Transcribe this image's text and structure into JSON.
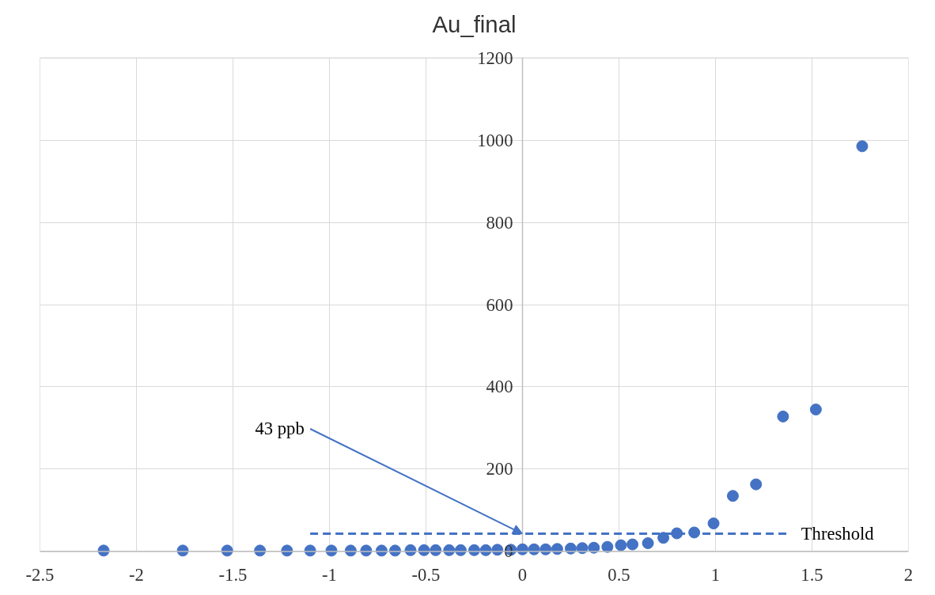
{
  "chart_data": {
    "type": "scatter",
    "title": "Au_final",
    "x": [
      -2.17,
      -1.76,
      -1.53,
      -1.36,
      -1.22,
      -1.1,
      -0.99,
      -0.89,
      -0.81,
      -0.73,
      -0.66,
      -0.58,
      -0.51,
      -0.45,
      -0.38,
      -0.32,
      -0.25,
      -0.19,
      -0.13,
      -0.06,
      0,
      0.06,
      0.12,
      0.18,
      0.25,
      0.31,
      0.37,
      0.44,
      0.51,
      0.57,
      0.65,
      0.73,
      0.8,
      0.89,
      0.99,
      1.09,
      1.21,
      1.35,
      1.52,
      1.76
    ],
    "series": [
      {
        "color": "#4472c4",
        "values": [
          2,
          2,
          2,
          2,
          2,
          2,
          2,
          2,
          2,
          2,
          2,
          3,
          3,
          3,
          3,
          3,
          3,
          3,
          4,
          4,
          5,
          5,
          5,
          6,
          7,
          8,
          9,
          11,
          15,
          17,
          20,
          33,
          44,
          46,
          68,
          135,
          163,
          328,
          345,
          985
        ]
      },
      {
        "name": "Threshold",
        "type": "line",
        "line_style": "dashed",
        "marker": "none",
        "color": "#4472c4",
        "x": [
          -1.1,
          1.37
        ],
        "values": [
          43,
          43
        ]
      }
    ],
    "annotations": [
      {
        "text": "43 ppb",
        "x": 0,
        "y": 43
      }
    ],
    "xlim": [
      -2.5,
      2
    ],
    "xticks": [
      -2.5,
      -2,
      -1.5,
      -1,
      -0.5,
      0,
      0.5,
      1,
      1.5,
      2
    ],
    "ylim": [
      0,
      1200
    ],
    "yticks": [
      0,
      200,
      400,
      600,
      800,
      1000,
      1200
    ],
    "grid": true,
    "legend": false,
    "marker": "circle"
  }
}
